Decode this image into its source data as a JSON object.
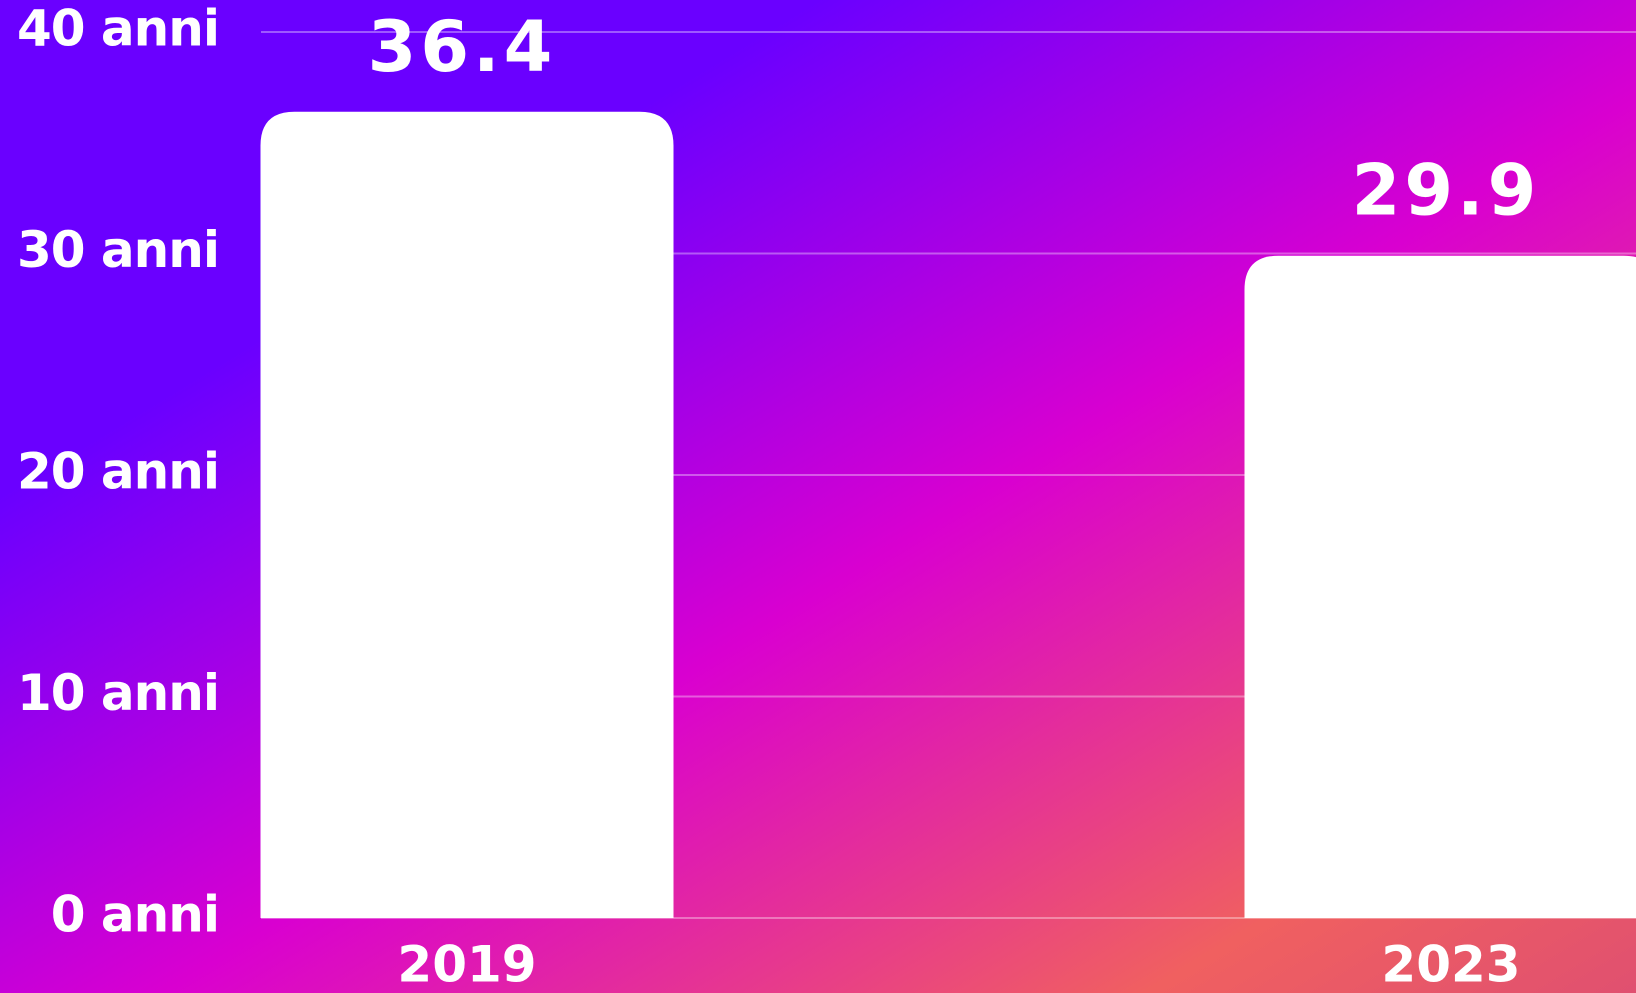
{
  "chart_data": {
    "type": "bar",
    "categories": [
      "2019",
      "2023"
    ],
    "values": [
      36.4,
      29.9
    ],
    "color": "#ffffff",
    "ylim": [
      0,
      40
    ],
    "yticks": [
      {
        "value": 0,
        "label": "0 anni"
      },
      {
        "value": 10,
        "label": "10 anni"
      },
      {
        "value": 20,
        "label": "20 anni"
      },
      {
        "value": 30,
        "label": "30 anni"
      },
      {
        "value": 40,
        "label": "40 anni"
      }
    ],
    "grid": true
  }
}
